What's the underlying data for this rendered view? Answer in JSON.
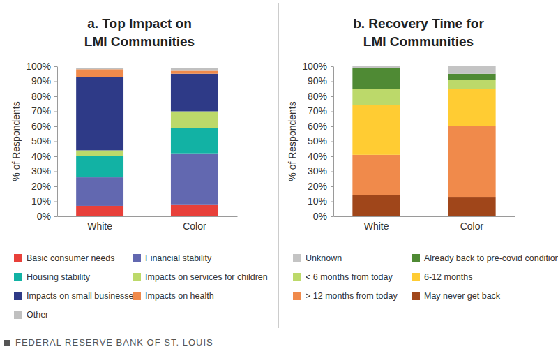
{
  "chart_data": [
    {
      "type": "bar",
      "stacked": true,
      "grid": false,
      "title": [
        "a. Top Impact on",
        "LMI Communities"
      ],
      "y_label": "% of Respondents",
      "categories": [
        "White",
        "Color"
      ],
      "ylim": [
        0,
        100
      ],
      "yticks": [
        {
          "value": 0,
          "label": "0%"
        },
        {
          "value": 10,
          "label": "10%"
        },
        {
          "value": 20,
          "label": "20%"
        },
        {
          "value": 30,
          "label": "30%"
        },
        {
          "value": 40,
          "label": "40%"
        },
        {
          "value": 50,
          "label": "50%"
        },
        {
          "value": 60,
          "label": "60%"
        },
        {
          "value": 70,
          "label": "70%"
        },
        {
          "value": 80,
          "label": "80%"
        },
        {
          "value": 90,
          "label": "90%"
        },
        {
          "value": 100,
          "label": "100%"
        }
      ],
      "series": [
        {
          "name": "Basic consumer needs",
          "color": "#e8403a",
          "values": [
            7,
            8
          ]
        },
        {
          "name": "Financial stability",
          "color": "#6268b0",
          "values": [
            19,
            34
          ]
        },
        {
          "name": "Housing stability",
          "color": "#12b2a4",
          "values": [
            14,
            17
          ]
        },
        {
          "name": "Impacts on services for children",
          "color": "#bcd96a",
          "values": [
            4,
            11
          ]
        },
        {
          "name": "Impacts on small businesses",
          "color": "#2e3a87",
          "values": [
            49,
            25
          ]
        },
        {
          "name": "Impacts on health",
          "color": "#f08a4b",
          "values": [
            5,
            2
          ]
        },
        {
          "name": "Other",
          "color": "#c0c0c0",
          "values": [
            1,
            2
          ]
        }
      ]
    },
    {
      "type": "bar",
      "stacked": true,
      "grid": false,
      "title": [
        "b. Recovery Time for",
        "LMI Communities"
      ],
      "y_label": "% of Respondents",
      "categories": [
        "White",
        "Color"
      ],
      "ylim": [
        0,
        100
      ],
      "yticks": [
        {
          "value": 0,
          "label": "0%"
        },
        {
          "value": 10,
          "label": "10%"
        },
        {
          "value": 20,
          "label": "20%"
        },
        {
          "value": 30,
          "label": "30%"
        },
        {
          "value": 40,
          "label": "40%"
        },
        {
          "value": 50,
          "label": "50%"
        },
        {
          "value": 60,
          "label": "60%"
        },
        {
          "value": 70,
          "label": "70%"
        },
        {
          "value": 80,
          "label": "80%"
        },
        {
          "value": 90,
          "label": "90%"
        },
        {
          "value": 100,
          "label": "100%"
        }
      ],
      "series": [
        {
          "name": "Unknown",
          "color": "#c4c4c4",
          "values": [
            1,
            5
          ]
        },
        {
          "name": "Already back to pre-covid conditions",
          "color": "#4f8a34",
          "values": [
            14,
            4
          ]
        },
        {
          "name": "< 6 months from today",
          "color": "#bcd96a",
          "values": [
            11,
            6
          ]
        },
        {
          "name": "6-12 months",
          "color": "#ffcc33",
          "values": [
            33,
            25
          ]
        },
        {
          "name": "> 12 months from today",
          "color": "#f08a4b",
          "values": [
            27,
            47
          ]
        },
        {
          "name": "May never get back",
          "color": "#a0461a",
          "values": [
            14,
            13
          ]
        }
      ]
    }
  ],
  "footer": "FEDERAL RESERVE BANK OF ST. LOUIS"
}
